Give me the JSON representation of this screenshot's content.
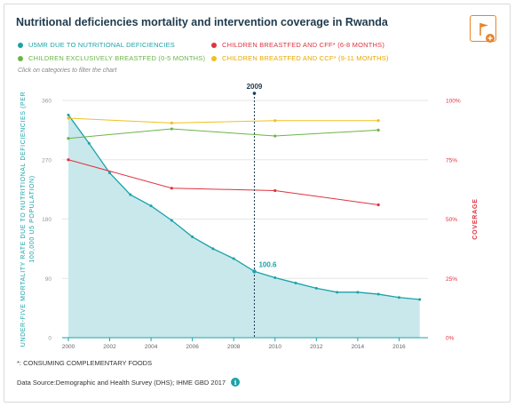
{
  "title": "Nutritional deficiencies mortality and intervention coverage in Rwanda",
  "hint": "Click on categories to filter the chart",
  "footnote": "*: CONSUMING COMPLEMENTARY FOODS",
  "source": "Data Source:Demographic and Health Survey (DHS); IHME GBD 2017",
  "info_icon_label": "i",
  "flag_icon": "flag-add-icon",
  "colors": {
    "teal": "#1aa3a8",
    "area": "#c9e8ec",
    "red": "#e0323f",
    "green": "#6ab547",
    "yellow": "#f2c01e",
    "axis_left": "#1aa3a8",
    "axis_right": "#e0323f",
    "accent": "#e8842a"
  },
  "chart_data": {
    "type": "line",
    "title": "",
    "xlabel": "",
    "ylabel_left": "UNDER-FIVE MORTALITY RATE DUE TO NUTRITIONAL DEFICIENCIES (PER 100,000 U5 POPULATION)",
    "ylabel_right": "COVERAGE",
    "xlim": [
      1999.7,
      2017.4
    ],
    "ylim_left": [
      0,
      360
    ],
    "ylim_right": [
      0,
      100
    ],
    "xticks": [
      "2000",
      "2002",
      "2004",
      "2006",
      "2008",
      "2010",
      "2012",
      "2014",
      "2016"
    ],
    "yticks_left": [
      "0",
      "90",
      "180",
      "270",
      "360"
    ],
    "yticks_right": [
      "0%",
      "25%",
      "50%",
      "75%",
      "100%"
    ],
    "highlight": {
      "x": 2009,
      "x_label": "2009",
      "value_label": "100.6"
    },
    "series": [
      {
        "name": "U5MR DUE TO NUTRITIONAL DEFICIENCIES",
        "axis": "left",
        "style": "area",
        "color_key": "teal",
        "x": [
          2000,
          2001,
          2002,
          2003,
          2004,
          2005,
          2006,
          2007,
          2008,
          2009,
          2010,
          2011,
          2012,
          2013,
          2014,
          2015,
          2016,
          2017
        ],
        "values": [
          338,
          295,
          250,
          217,
          200,
          178,
          153,
          135,
          120,
          100.6,
          91,
          83,
          75,
          69,
          69,
          66,
          61,
          58
        ]
      },
      {
        "name": "CHILDREN BREASTFED AND CFF* (6-8 MONTHS)",
        "axis": "right",
        "style": "line",
        "color_key": "red",
        "x": [
          2000,
          2005,
          2010,
          2015
        ],
        "values": [
          75,
          63,
          62,
          56
        ]
      },
      {
        "name": "CHILDREN EXCLUSIVELY BREASTFED (0-5 MONTHS)",
        "axis": "right",
        "style": "line",
        "color_key": "green",
        "x": [
          2000,
          2005,
          2010,
          2015
        ],
        "values": [
          84,
          88,
          85,
          87.5
        ]
      },
      {
        "name": "CHILDREN BREASTFED AND CCF* (9-11 MONTHS)",
        "axis": "right",
        "style": "line",
        "color_key": "yellow",
        "x": [
          2000,
          2005,
          2010,
          2015
        ],
        "values": [
          92.5,
          90.5,
          91.5,
          91.5
        ]
      }
    ]
  }
}
